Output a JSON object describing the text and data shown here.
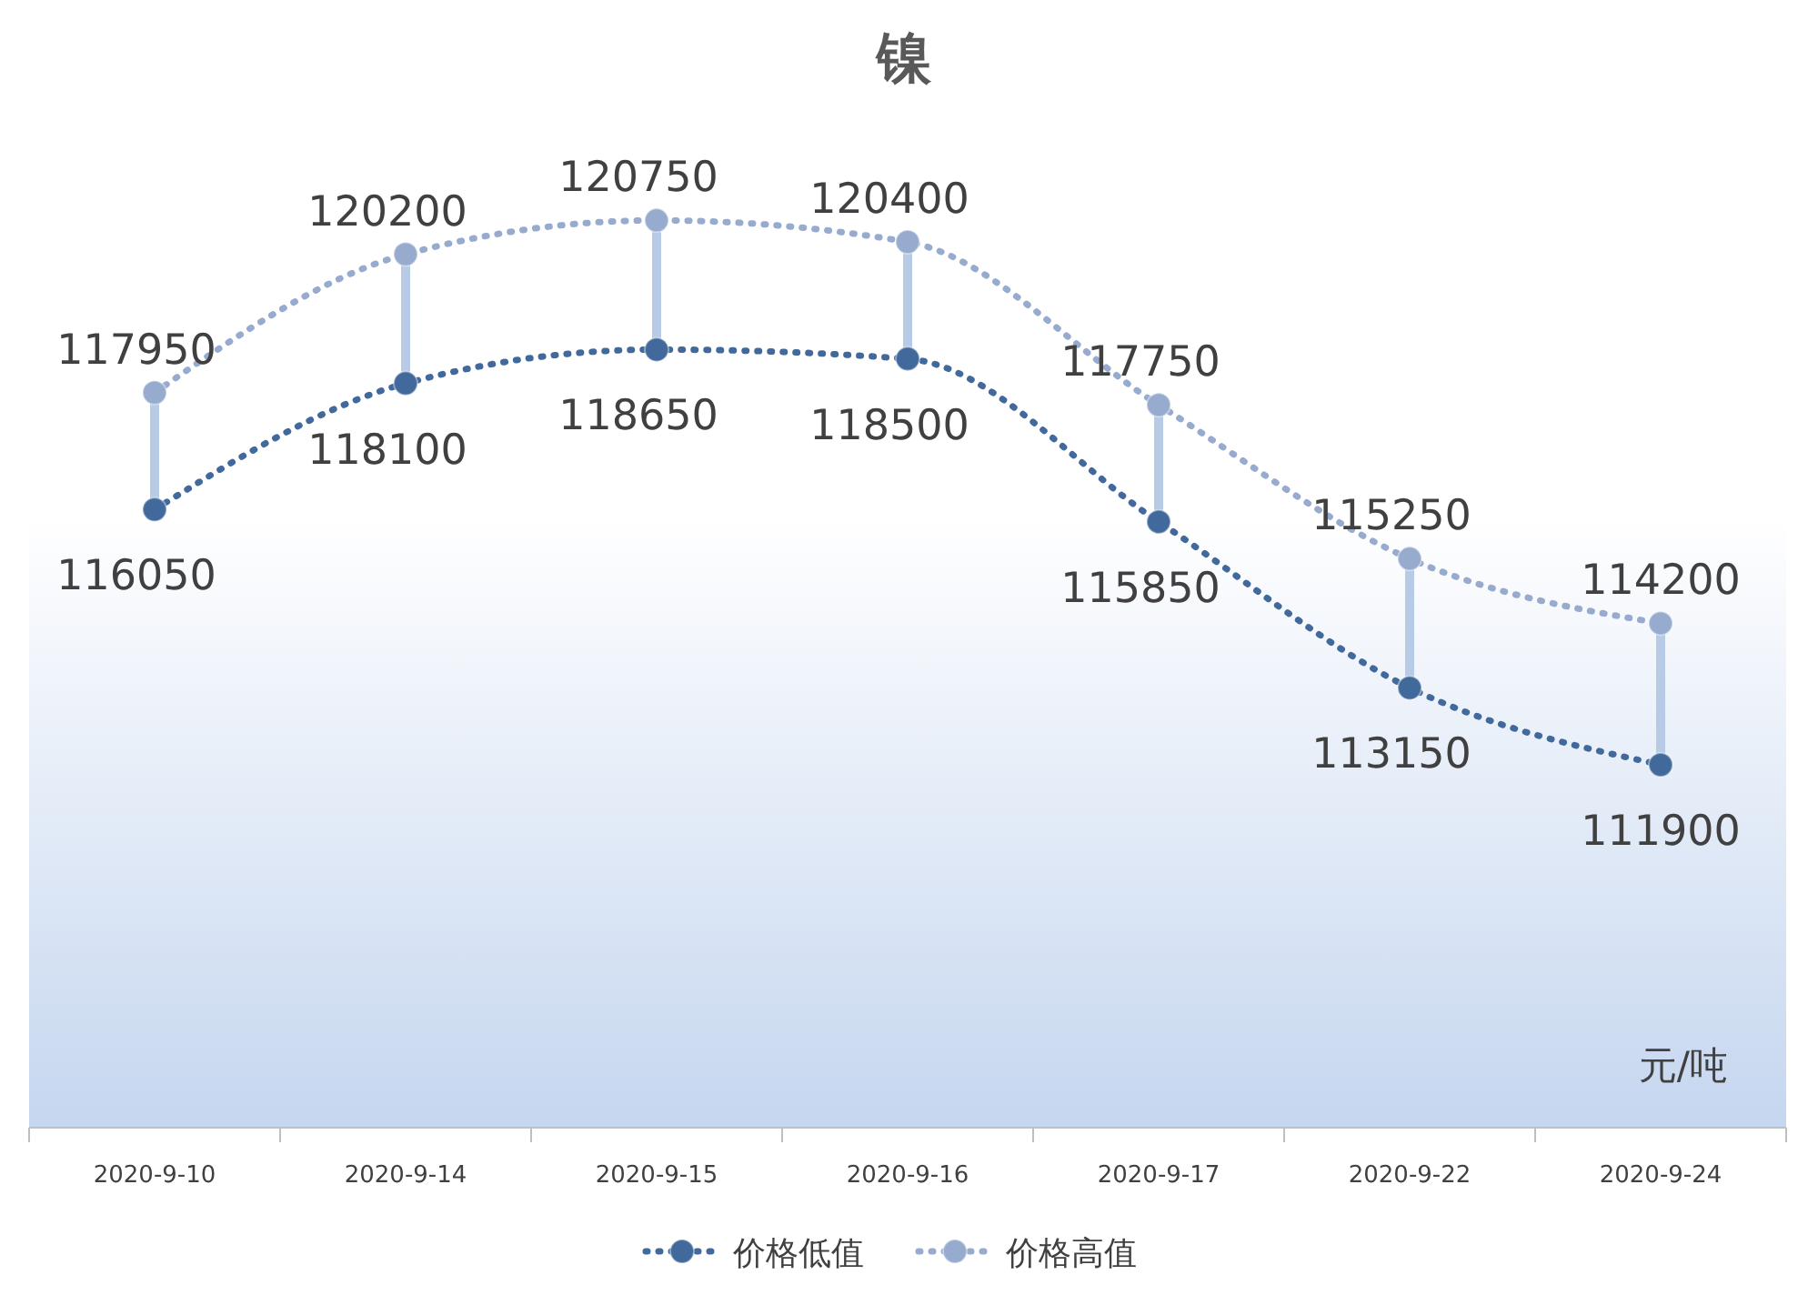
{
  "chart_data": {
    "type": "line",
    "title": "镍",
    "ylabel": "元/吨",
    "categories": [
      "2020-9-10",
      "2020-9-14",
      "2020-9-15",
      "2020-9-16",
      "2020-9-17",
      "2020-9-22",
      "2020-9-24"
    ],
    "series": [
      {
        "name": "价格低值",
        "color": "#41699b",
        "values": [
          116050,
          118100,
          118650,
          118500,
          115850,
          113150,
          111900
        ]
      },
      {
        "name": "价格高值",
        "color": "#97abcf",
        "values": [
          117950,
          120200,
          120750,
          120400,
          117750,
          115250,
          114200
        ]
      }
    ],
    "ylim": [
      106000,
      122500
    ],
    "tick_labels": "x",
    "data_labels": true,
    "marker": "circle",
    "line_style": "dotted",
    "legend": "bottom",
    "grid": false
  }
}
